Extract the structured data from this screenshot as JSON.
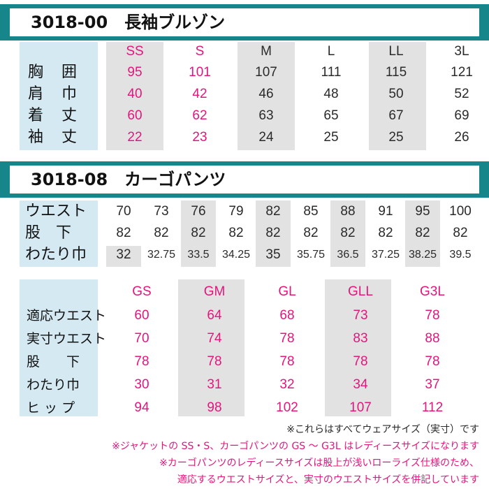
{
  "section1": {
    "title": "3018-00　長袖ブルゾン",
    "sizes": [
      "SS",
      "S",
      "M",
      "L",
      "LL",
      "3L"
    ],
    "rows": [
      {
        "label": "胸　囲",
        "values": [
          "95",
          "101",
          "107",
          "111",
          "115",
          "121"
        ]
      },
      {
        "label": "肩　巾",
        "values": [
          "40",
          "42",
          "46",
          "48",
          "50",
          "52"
        ]
      },
      {
        "label": "着　丈",
        "values": [
          "60",
          "62",
          "63",
          "65",
          "67",
          "69"
        ]
      },
      {
        "label": "袖　丈",
        "values": [
          "22",
          "23",
          "24",
          "25",
          "25",
          "26"
        ]
      }
    ]
  },
  "section2": {
    "title": "3018-08　カーゴパンツ",
    "rows": [
      {
        "label": "ウエスト",
        "values": [
          "70",
          "73",
          "76",
          "79",
          "82",
          "85",
          "88",
          "91",
          "95",
          "100"
        ]
      },
      {
        "label": "股　下",
        "values": [
          "82",
          "82",
          "82",
          "82",
          "82",
          "82",
          "82",
          "82",
          "82",
          "82"
        ]
      },
      {
        "label": "わたり巾",
        "values": [
          "32",
          "32.75",
          "33.5",
          "34.25",
          "35",
          "35.75",
          "36.5",
          "37.25",
          "38.25",
          "39.5"
        ]
      }
    ]
  },
  "section3": {
    "sizes": [
      "GS",
      "GM",
      "GL",
      "GLL",
      "G3L"
    ],
    "rows": [
      {
        "label": "適応ウエスト",
        "values": [
          "60",
          "64",
          "68",
          "73",
          "78"
        ]
      },
      {
        "label": "実寸ウエスト",
        "values": [
          "70",
          "74",
          "78",
          "83",
          "88"
        ]
      },
      {
        "label": "股　　下",
        "values": [
          "78",
          "78",
          "78",
          "78",
          "78"
        ]
      },
      {
        "label": "わたり巾",
        "values": [
          "30",
          "31",
          "32",
          "34",
          "37"
        ]
      },
      {
        "label": "ヒ ッ プ",
        "values": [
          "94",
          "98",
          "102",
          "107",
          "112"
        ]
      }
    ]
  },
  "notes": [
    "※これらはすべてウェアサイズ（実寸）です",
    "※ジャケットの SS・S、カーゴパンツの GS ～ G3L はレディースサイズになります",
    "※カーゴパンツのレディースサイズは股上が浅いローライズ仕様のため、",
    "適応するウエストサイズと、実寸のウエストサイズを併記しています"
  ],
  "colors": {
    "banner": "#17868a",
    "pink": "#e4157c",
    "blue_band": "#d4e9f2",
    "gray_band": "#e2e2e2"
  }
}
